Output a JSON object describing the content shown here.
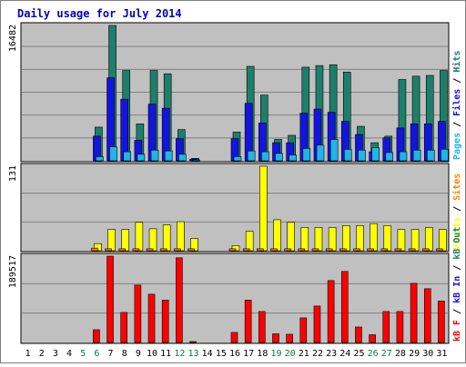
{
  "chart_data": {
    "type": "bar",
    "title": "Daily usage for July 2014",
    "x_ticks": [
      "1",
      "2",
      "3",
      "4",
      "5",
      "6",
      "7",
      "8",
      "9",
      "10",
      "11",
      "12",
      "13",
      "14",
      "15",
      "16",
      "17",
      "18",
      "19",
      "20",
      "21",
      "22",
      "23",
      "24",
      "25",
      "26",
      "27",
      "28",
      "29",
      "30",
      "31"
    ],
    "weekend_days": [
      "5",
      "6",
      "12",
      "13",
      "19",
      "20",
      "26",
      "27"
    ],
    "panels": [
      {
        "name": "pages-files-hits",
        "ymax_label": "16482",
        "ylim": [
          0,
          16482
        ],
        "right_labels": [
          "Pages",
          "Files",
          "Hits"
        ],
        "series": [
          {
            "name": "Hits",
            "color": "#1d7f6a",
            "values": [
              0,
              0,
              0,
              0,
              0,
              4100,
              16482,
              11000,
              4500,
              11000,
              10600,
              3800,
              300,
              0,
              0,
              3500,
              11500,
              8000,
              2600,
              3100,
              11400,
              11600,
              11700,
              10800,
              4200,
              2200,
              3000,
              9900,
              10300,
              10400,
              11000
            ]
          },
          {
            "name": "Files",
            "color": "#1414e0",
            "values": [
              0,
              0,
              0,
              0,
              0,
              3000,
              10100,
              7500,
              2500,
              6900,
              6400,
              2700,
              200,
              0,
              0,
              2700,
              7000,
              4600,
              2200,
              2200,
              5800,
              6300,
              5900,
              4800,
              3200,
              1100,
              2800,
              4000,
              4500,
              4500,
              4800
            ]
          },
          {
            "name": "Pages",
            "color": "#20b4e8",
            "values": [
              0,
              0,
              0,
              0,
              0,
              500,
              1700,
              1100,
              800,
              1300,
              1200,
              800,
              100,
              0,
              0,
              500,
              1200,
              1100,
              900,
              700,
              1500,
              1900,
              2600,
              1400,
              1300,
              1600,
              1000,
              1100,
              1300,
              1300,
              1400
            ]
          }
        ]
      },
      {
        "name": "visits-sites",
        "ymax_label": "131",
        "ylim": [
          0,
          131
        ],
        "right_labels": [
          "Visits",
          "Sites"
        ],
        "series": [
          {
            "name": "Visits",
            "color": "#ffff00",
            "values": [
              0,
              0,
              0,
              0,
              0,
              11,
              33,
              33,
              44,
              34,
              40,
              45,
              19,
              0,
              0,
              8,
              30,
              131,
              48,
              44,
              36,
              36,
              36,
              39,
              39,
              42,
              39,
              33,
              33,
              36,
              33
            ]
          },
          {
            "name": "Sites",
            "color": "#ff8000",
            "values": [
              0,
              0,
              0,
              0,
              0,
              4,
              3,
              3,
              3,
              3,
              3,
              3,
              3,
              0,
              0,
              3,
              3,
              3,
              3,
              3,
              3,
              3,
              3,
              3,
              3,
              3,
              3,
              3,
              3,
              3,
              3
            ]
          }
        ]
      },
      {
        "name": "kbf-kbin-kbout",
        "ymax_label": "189517",
        "ylim": [
          0,
          189517
        ],
        "right_labels": [
          "kB F",
          "kB In",
          "kB Out"
        ],
        "series": [
          {
            "name": "kB F",
            "color": "#ff0000",
            "values": [
              0,
              0,
              0,
              0,
              0,
              28000,
              189517,
              66000,
              126000,
              106000,
              93000,
              186000,
              2000,
              0,
              0,
              22000,
              93000,
              68000,
              19000,
              18000,
              54000,
              80000,
              136000,
              156000,
              34000,
              17000,
              68000,
              68000,
              130000,
              118000,
              91000
            ]
          }
        ]
      }
    ]
  },
  "colors": {
    "background": "#ffffff",
    "border": "#808080",
    "panel_bg": "#c0c0c0",
    "title": "#0000c0",
    "axis_text": "#000000",
    "weekend_text": "#008040",
    "gridline": "#808080",
    "label_sep": "#000000"
  }
}
